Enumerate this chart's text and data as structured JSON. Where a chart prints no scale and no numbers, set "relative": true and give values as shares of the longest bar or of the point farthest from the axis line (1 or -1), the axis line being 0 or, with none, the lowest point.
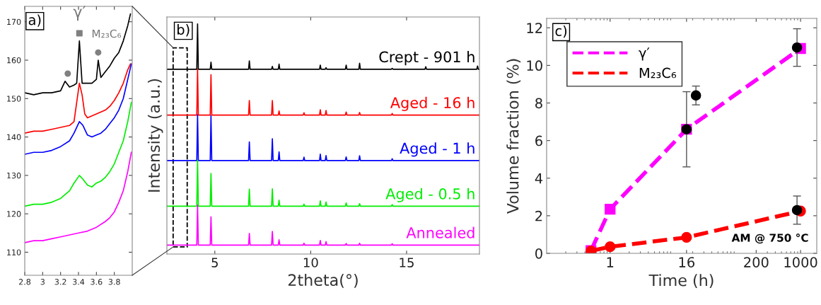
{
  "chart_data": [
    {
      "type": "line",
      "xlim": [
        2.8,
        4.0
      ],
      "ylim": [
        104,
        174
      ],
      "xticks": [
        2.8,
        3,
        3.2,
        3.4,
        3.6,
        3.8
      ],
      "yticks": [
        110,
        120,
        130,
        140,
        150,
        160,
        170
      ],
      "grid": false,
      "legend": false,
      "annotations": [
        "a)",
        "γ′",
        "M₂₃C₆"
      ],
      "series": [
        {
          "color": "#000000",
          "x": [
            2.8,
            2.9,
            3.0,
            3.1,
            3.2,
            3.25,
            3.3,
            3.35,
            3.38,
            3.41,
            3.44,
            3.5,
            3.55,
            3.6,
            3.62,
            3.65,
            3.7,
            3.75,
            3.8,
            3.85,
            3.9,
            3.95,
            3.98
          ],
          "values": [
            151.5,
            151,
            151.5,
            151.5,
            152,
            154.5,
            153,
            153.5,
            154,
            165,
            154,
            154,
            154,
            155,
            160,
            155.5,
            157,
            158.5,
            160.5,
            162,
            165,
            169,
            172
          ]
        },
        {
          "color": "#ff0000",
          "x": [
            2.8,
            2.9,
            3.0,
            3.1,
            3.2,
            3.3,
            3.35,
            3.38,
            3.41,
            3.44,
            3.47,
            3.5,
            3.55,
            3.6,
            3.65,
            3.7,
            3.75,
            3.8,
            3.85,
            3.9,
            3.95,
            3.98
          ],
          "values": [
            141,
            141.5,
            141.5,
            142,
            142.5,
            143,
            144,
            149,
            154,
            151,
            146,
            145,
            145.5,
            146,
            146.5,
            147,
            148,
            149.5,
            151.5,
            154,
            157.5,
            159
          ]
        },
        {
          "color": "#0000ff",
          "x": [
            2.8,
            2.9,
            3.0,
            3.1,
            3.2,
            3.3,
            3.35,
            3.41,
            3.45,
            3.5,
            3.55,
            3.6,
            3.65,
            3.7,
            3.75,
            3.8,
            3.85,
            3.9,
            3.95,
            3.99
          ],
          "values": [
            135.5,
            136,
            136,
            136.5,
            137.5,
            139,
            141,
            144,
            143,
            140.5,
            140,
            140.5,
            141,
            142,
            143.5,
            145,
            147,
            150,
            155,
            159
          ]
        },
        {
          "color": "#00ee00",
          "x": [
            2.8,
            2.9,
            3.0,
            3.1,
            3.2,
            3.3,
            3.35,
            3.41,
            3.45,
            3.5,
            3.55,
            3.6,
            3.65,
            3.7,
            3.75,
            3.8,
            3.85,
            3.9,
            3.95,
            3.99
          ],
          "values": [
            122,
            122.5,
            122.5,
            123,
            124,
            126,
            128,
            130,
            129,
            127.5,
            127,
            128,
            128.5,
            129.5,
            131,
            133,
            136,
            139,
            144,
            149
          ]
        },
        {
          "color": "#ff00ff",
          "x": [
            2.8,
            2.9,
            3.0,
            3.1,
            3.2,
            3.3,
            3.4,
            3.5,
            3.6,
            3.7,
            3.75,
            3.8,
            3.85,
            3.9,
            3.95,
            3.99
          ],
          "values": [
            112.5,
            113,
            113,
            113.5,
            114,
            114.5,
            115,
            115.5,
            116.5,
            118,
            119,
            120.5,
            123,
            126,
            131,
            136
          ]
        },
        {
          "type": "scatter",
          "marker": "square",
          "color": "#808080",
          "x": [
            3.41
          ],
          "values": [
            167
          ]
        },
        {
          "type": "scatter",
          "marker": "circle",
          "color": "#808080",
          "x": [
            3.28,
            3.62
          ],
          "values": [
            156.5,
            162
          ]
        }
      ]
    },
    {
      "type": "line",
      "relative": true,
      "xlim": [
        2.5,
        18.8
      ],
      "xticks": [
        5,
        10,
        15
      ],
      "xlabel": "2theta(°)",
      "ylabel": "Intensity (a.u.)",
      "grid": false,
      "legend": false,
      "annotations": [
        "b)"
      ],
      "x": [
        2.5,
        4.06,
        4.1,
        4.14,
        4.76,
        4.8,
        4.84,
        6.76,
        6.8,
        6.84,
        7.96,
        8.0,
        8.04,
        8.31,
        8.35,
        8.39,
        9.61,
        9.65,
        9.69,
        10.46,
        10.5,
        10.54,
        10.76,
        10.8,
        10.84,
        11.81,
        11.85,
        11.89,
        12.51,
        12.55,
        12.59,
        14.21,
        14.25,
        14.29,
        18.8
      ],
      "series": [
        {
          "name": "Crept - 901 h",
          "color": "#000000",
          "x": [
            2.5,
            4.06,
            4.1,
            4.14,
            4.76,
            4.8,
            4.84,
            6.76,
            6.8,
            6.84,
            7.96,
            8.0,
            8.04,
            8.31,
            8.35,
            8.39,
            10.46,
            10.5,
            10.54,
            10.76,
            10.8,
            10.84,
            11.81,
            11.85,
            11.89,
            12.51,
            12.55,
            12.59,
            14.21,
            14.25,
            14.29,
            15.96,
            16.0,
            16.04,
            18.66,
            18.7,
            18.74,
            18.8
          ],
          "values": [
            0.803,
            0.803,
            1.0,
            0.803,
            0.803,
            0.834,
            0.803,
            0.803,
            0.839,
            0.803,
            0.803,
            0.815,
            0.803,
            0.803,
            0.825,
            0.803,
            0.803,
            0.821,
            0.803,
            0.803,
            0.81,
            0.803,
            0.803,
            0.821,
            0.803,
            0.803,
            0.829,
            0.803,
            0.803,
            0.807,
            0.803,
            0.803,
            0.814,
            0.803,
            0.803,
            0.817,
            0.803,
            0.803
          ]
        },
        {
          "name": "Aged - 16 h",
          "color": "#ff0000",
          "values": [
            0.604,
            0.604,
            0.803,
            0.604,
            0.604,
            0.779,
            0.604,
            0.604,
            0.667,
            0.604,
            0.604,
            0.667,
            0.604,
            0.604,
            0.622,
            0.604,
            0.604,
            0.614,
            0.604,
            0.604,
            0.627,
            0.604,
            0.604,
            0.624,
            0.604,
            0.604,
            0.617,
            0.604,
            0.604,
            0.615,
            0.604,
            0.604,
            0.611,
            0.604,
            0.604
          ]
        },
        {
          "name": "Aged - 1 h",
          "color": "#0000ff",
          "values": [
            0.406,
            0.406,
            0.605,
            0.406,
            0.406,
            0.601,
            0.406,
            0.406,
            0.487,
            0.406,
            0.406,
            0.501,
            0.406,
            0.406,
            0.444,
            0.406,
            0.406,
            0.421,
            0.406,
            0.406,
            0.434,
            0.406,
            0.406,
            0.428,
            0.406,
            0.406,
            0.422,
            0.406,
            0.406,
            0.427,
            0.406,
            0.406,
            0.414,
            0.406,
            0.406
          ]
        },
        {
          "name": "Aged - 0.5 h",
          "color": "#00ee00",
          "values": [
            0.208,
            0.208,
            0.408,
            0.208,
            0.208,
            0.35,
            0.208,
            0.208,
            0.282,
            0.208,
            0.208,
            0.283,
            0.208,
            0.208,
            0.234,
            0.208,
            0.208,
            0.217,
            0.208,
            0.208,
            0.231,
            0.208,
            0.208,
            0.226,
            0.208,
            0.208,
            0.222,
            0.208,
            0.208,
            0.219,
            0.208,
            0.208,
            0.215,
            0.208,
            0.208
          ]
        },
        {
          "name": "Annealed",
          "color": "#ff00ff",
          "values": [
            0.039,
            0.039,
            0.213,
            0.039,
            0.039,
            0.162,
            0.039,
            0.039,
            0.09,
            0.039,
            0.039,
            0.098,
            0.039,
            0.039,
            0.062,
            0.039,
            0.039,
            0.047,
            0.039,
            0.039,
            0.059,
            0.039,
            0.039,
            0.054,
            0.039,
            0.039,
            0.046,
            0.039,
            0.039,
            0.047,
            0.039,
            0.039,
            0.045,
            0.039,
            0.039
          ]
        }
      ]
    },
    {
      "type": "line",
      "log": "x",
      "xlim": [
        0.1,
        1800
      ],
      "ylim": [
        0,
        12.5
      ],
      "xticks": [
        1,
        16,
        200,
        1000
      ],
      "yticks": [
        0,
        2,
        4,
        6,
        8,
        10,
        12
      ],
      "xlabel": "Time (h)",
      "ylabel": "Volume fraction (%)",
      "grid": false,
      "legend": "top left",
      "line_style": "dashed",
      "annotations": [
        "c)",
        "AM @ 750 °C"
      ],
      "series": [
        {
          "name": "γ′",
          "color": "#ff00ff",
          "marker": "square",
          "x": [
            0.5,
            1,
            16,
            1000
          ],
          "values": [
            0.15,
            2.35,
            6.6,
            10.9
          ]
        },
        {
          "name": "M₂₃C₆",
          "color": "#ff0000",
          "marker": "circle",
          "x": [
            0.5,
            1,
            16,
            1000
          ],
          "values": [
            0.13,
            0.35,
            0.85,
            2.25
          ]
        },
        {
          "type": "scatter",
          "color": "#000000",
          "marker": "circle",
          "x": [
            16,
            22.5,
            880,
            880
          ],
          "values": [
            6.6,
            8.4,
            10.95,
            2.3
          ],
          "errors": [
            [
              4.6,
              8.6
            ],
            [
              7.9,
              8.9
            ],
            [
              9.95,
              11.95
            ],
            [
              1.55,
              3.05
            ]
          ]
        }
      ]
    }
  ]
}
